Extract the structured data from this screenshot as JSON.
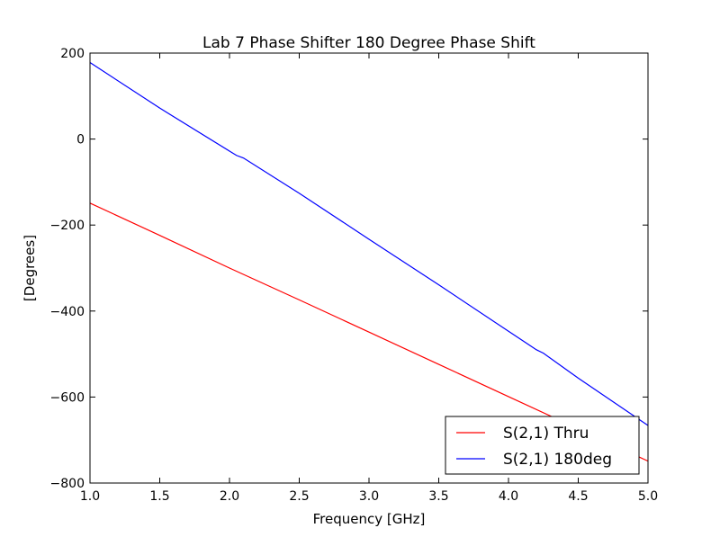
{
  "chart_data": {
    "type": "line",
    "title": "Lab 7 Phase Shifter 180 Degree Phase Shift",
    "xlabel": "Frequency [GHz]",
    "ylabel": "[Degrees]",
    "xlim": [
      1.0,
      5.0
    ],
    "ylim": [
      -800,
      200
    ],
    "x_ticks": [
      1.0,
      1.5,
      2.0,
      2.5,
      3.0,
      3.5,
      4.0,
      4.5,
      5.0
    ],
    "x_tick_labels": [
      "1.0",
      "1.5",
      "2.0",
      "2.5",
      "3.0",
      "3.5",
      "4.0",
      "4.5",
      "5.0"
    ],
    "y_ticks": [
      200,
      0,
      -200,
      -400,
      -600,
      -800
    ],
    "y_tick_labels": [
      "200",
      "0",
      "−200",
      "−400",
      "−600",
      "−800"
    ],
    "grid": false,
    "legend": {
      "placement": "bottom-right"
    },
    "series": [
      {
        "name": "S(2,1) Thru",
        "color": "#ff0000",
        "x": [
          1.0,
          1.5,
          2.0,
          2.5,
          3.0,
          3.5,
          4.0,
          4.5,
          5.0
        ],
        "y": [
          -149,
          -224,
          -300,
          -374,
          -449,
          -524,
          -599,
          -674,
          -749
        ]
      },
      {
        "name": "S(2,1) 180deg",
        "color": "#0000ff",
        "x": [
          1.0,
          1.5,
          2.0,
          2.05,
          2.1,
          2.5,
          3.0,
          3.5,
          4.0,
          4.2,
          4.25,
          4.5,
          5.0
        ],
        "y": [
          178,
          72,
          -28,
          -38,
          -44,
          -126,
          -233,
          -339,
          -447,
          -490,
          -498,
          -556,
          -666
        ]
      }
    ]
  }
}
